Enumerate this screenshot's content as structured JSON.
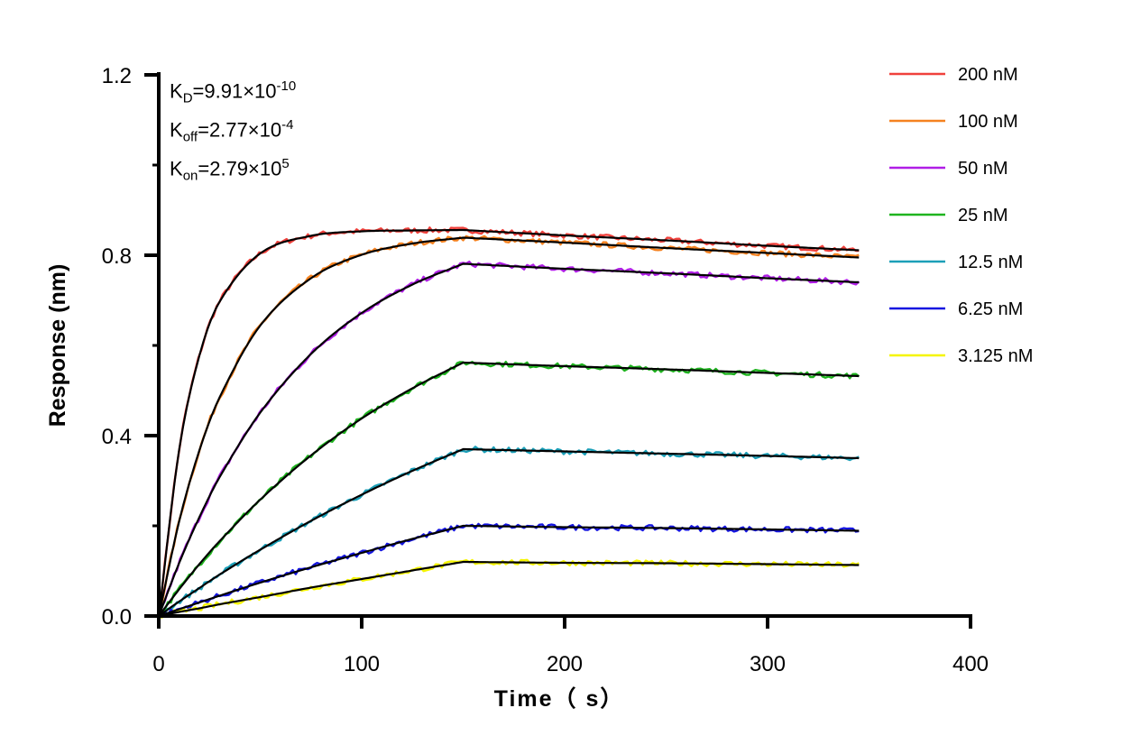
{
  "chart_data": {
    "type": "line",
    "xlabel": "Time（ s）",
    "ylabel": "Response (nm)",
    "xlim": [
      0,
      400
    ],
    "ylim": [
      0,
      1.2
    ],
    "xticks": [
      "0",
      "100",
      "200",
      "300",
      "400"
    ],
    "yticks": [
      "0.0",
      "0.4",
      "0.8",
      "1.2"
    ],
    "grid": false,
    "legend_position": "right",
    "annotations": {
      "kd": {
        "label": "K",
        "sub": "D",
        "value": "=9.91×10",
        "exp": "-10"
      },
      "koff": {
        "label": "K",
        "sub": "off",
        "value": "=2.77×10",
        "exp": "-4"
      },
      "kon": {
        "label": "K",
        "sub": "on",
        "value": "=2.79×10",
        "exp": "5"
      }
    },
    "x": [
      0,
      10,
      20,
      30,
      50,
      75,
      100,
      125,
      150,
      200,
      250,
      300,
      345
    ],
    "fit_color": "#000000",
    "series": [
      {
        "name": "200 nM",
        "color": "#f0413c",
        "values": [
          0,
          0.367,
          0.577,
          0.697,
          0.804,
          0.843,
          0.853,
          0.855,
          0.856,
          0.844,
          0.833,
          0.821,
          0.811
        ]
      },
      {
        "name": "100 nM",
        "color": "#f58220",
        "values": [
          0,
          0.209,
          0.367,
          0.485,
          0.644,
          0.749,
          0.801,
          0.826,
          0.839,
          0.828,
          0.816,
          0.805,
          0.795
        ]
      },
      {
        "name": "50 nM",
        "color": "#b01ee6",
        "values": [
          0,
          0.117,
          0.219,
          0.308,
          0.451,
          0.581,
          0.672,
          0.735,
          0.781,
          0.77,
          0.76,
          0.749,
          0.74
        ]
      },
      {
        "name": "25 nM",
        "color": "#1fb41f",
        "values": [
          0,
          0.059,
          0.115,
          0.166,
          0.258,
          0.356,
          0.438,
          0.505,
          0.562,
          0.554,
          0.547,
          0.539,
          0.532
        ]
      },
      {
        "name": "12.5 nM",
        "color": "#1b9fb8",
        "values": [
          0,
          0.032,
          0.062,
          0.092,
          0.147,
          0.211,
          0.269,
          0.322,
          0.37,
          0.365,
          0.36,
          0.355,
          0.35
        ]
      },
      {
        "name": "6.25 nM",
        "color": "#1515e0",
        "values": [
          0,
          0.015,
          0.03,
          0.045,
          0.074,
          0.108,
          0.14,
          0.171,
          0.2,
          0.197,
          0.195,
          0.192,
          0.189
        ]
      },
      {
        "name": "3.125 nM",
        "color": "#f5f500",
        "values": [
          0,
          0.009,
          0.017,
          0.026,
          0.042,
          0.063,
          0.082,
          0.101,
          0.12,
          0.118,
          0.117,
          0.115,
          0.113
        ]
      }
    ]
  }
}
